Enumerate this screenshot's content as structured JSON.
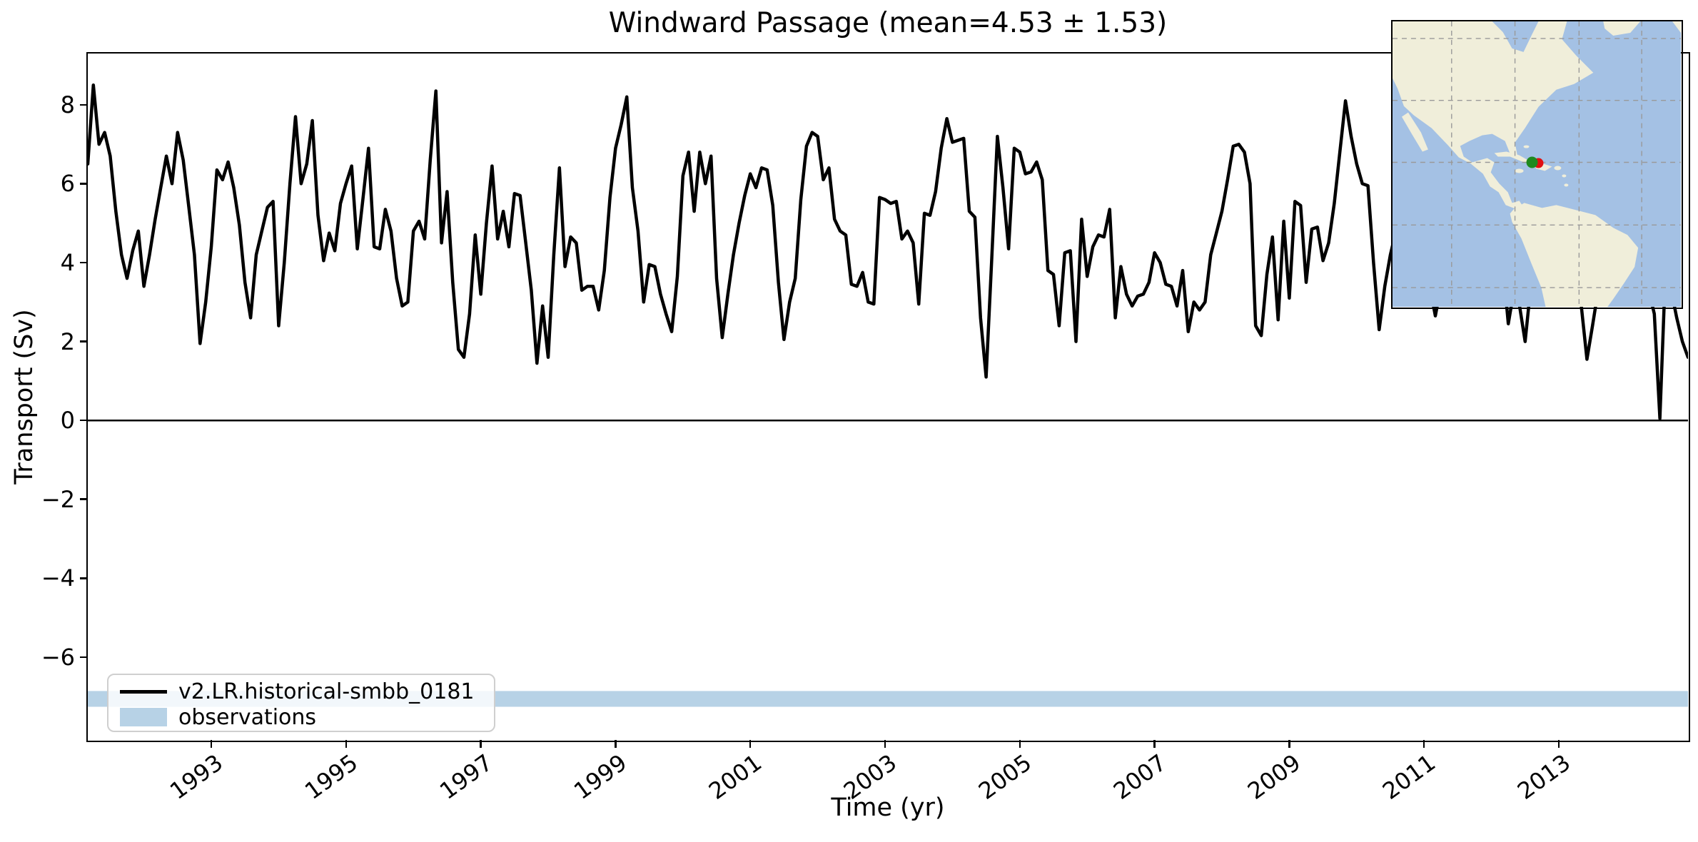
{
  "title": "Windward Passage (mean=4.53 ± 1.53)",
  "axes": {
    "xlabel": "Time (yr)",
    "ylabel": "Transport (Sv)",
    "xlim": [
      1991.167,
      2014.917
    ],
    "ylim": [
      -8.1,
      9.3
    ],
    "xticks": [
      1993,
      1995,
      1997,
      1999,
      2001,
      2003,
      2005,
      2007,
      2009,
      2011,
      2013
    ],
    "xtick_labels": [
      "1993",
      "1995",
      "1997",
      "1999",
      "2001",
      "2003",
      "2005",
      "2007",
      "2009",
      "2011",
      "2013"
    ],
    "yticks": [
      8,
      6,
      4,
      2,
      0,
      -2,
      -4,
      -6
    ],
    "ytick_labels": [
      "8",
      "6",
      "4",
      "2",
      "0",
      "−2",
      "−4",
      "−6"
    ]
  },
  "legend": {
    "items": [
      {
        "label": "v2.LR.historical-smbb_0181",
        "swatch": "line",
        "color": "#000000"
      },
      {
        "label": "observations",
        "swatch": "patch",
        "color": "#b7d2e6"
      }
    ]
  },
  "chart_data": {
    "type": "line",
    "title": "Windward Passage (mean=4.53 ± 1.53)",
    "xlabel": "Time (yr)",
    "ylabel": "Transport (Sv)",
    "xlim": [
      1991.167,
      2014.917
    ],
    "ylim": [
      -8.1,
      9.3
    ],
    "grid": false,
    "legend_position": "lower left",
    "mean": 4.53,
    "std": 1.53,
    "zero_line": 0,
    "observations_band": {
      "label": "observations",
      "y_min": -7.26,
      "y_max": -6.86,
      "color": "#b7d2e6"
    },
    "series": [
      {
        "name": "v2.LR.historical-smbb_0181",
        "color": "#000000",
        "line_width": 4.5,
        "start_time": 1991.1667,
        "step_years": 0.0833333,
        "values": [
          6.5,
          8.5,
          7.0,
          7.3,
          6.7,
          5.3,
          4.2,
          3.6,
          4.3,
          4.8,
          3.4,
          4.2,
          5.1,
          5.9,
          6.7,
          6.0,
          7.3,
          6.6,
          5.4,
          4.2,
          1.95,
          3.0,
          4.4,
          6.35,
          6.1,
          6.55,
          5.9,
          4.95,
          3.5,
          2.6,
          4.2,
          4.8,
          5.4,
          5.55,
          2.4,
          4.0,
          6.0,
          7.7,
          6.0,
          6.5,
          7.6,
          5.2,
          4.05,
          4.75,
          4.3,
          5.5,
          6.0,
          6.45,
          4.35,
          5.6,
          6.9,
          4.4,
          4.35,
          5.35,
          4.8,
          3.6,
          2.9,
          3.0,
          4.8,
          5.05,
          4.6,
          6.6,
          8.35,
          4.5,
          5.8,
          3.5,
          1.8,
          1.6,
          2.7,
          4.7,
          3.2,
          5.0,
          6.45,
          4.6,
          5.3,
          4.4,
          5.75,
          5.7,
          4.5,
          3.3,
          1.45,
          2.9,
          1.6,
          4.2,
          6.4,
          3.9,
          4.65,
          4.5,
          3.3,
          3.4,
          3.4,
          2.8,
          3.8,
          5.65,
          6.9,
          7.5,
          8.2,
          5.9,
          4.8,
          3.0,
          3.95,
          3.9,
          3.2,
          2.7,
          2.25,
          3.65,
          6.2,
          6.8,
          5.3,
          6.8,
          6.0,
          6.7,
          3.6,
          2.1,
          3.2,
          4.2,
          5.0,
          5.7,
          6.25,
          5.9,
          6.4,
          6.35,
          5.45,
          3.5,
          2.05,
          3.0,
          3.6,
          5.6,
          6.95,
          7.3,
          7.2,
          6.1,
          6.4,
          5.1,
          4.8,
          4.7,
          3.45,
          3.4,
          3.75,
          3.0,
          2.95,
          5.65,
          5.6,
          5.5,
          5.55,
          4.6,
          4.8,
          4.5,
          2.95,
          5.25,
          5.2,
          5.8,
          6.9,
          7.65,
          7.05,
          7.1,
          7.15,
          5.3,
          5.15,
          2.6,
          1.1,
          4.1,
          7.2,
          5.9,
          4.35,
          6.9,
          6.8,
          6.25,
          6.3,
          6.55,
          6.1,
          3.8,
          3.7,
          2.4,
          4.25,
          4.3,
          2.0,
          5.1,
          3.65,
          4.4,
          4.7,
          4.65,
          5.35,
          2.6,
          3.9,
          3.2,
          2.9,
          3.15,
          3.2,
          3.5,
          4.25,
          4.0,
          3.45,
          3.4,
          2.9,
          3.8,
          2.25,
          3.0,
          2.8,
          3.0,
          4.2,
          4.75,
          5.3,
          6.1,
          6.95,
          7.0,
          6.8,
          6.0,
          2.4,
          2.15,
          3.7,
          4.65,
          2.55,
          5.05,
          3.1,
          5.55,
          5.45,
          3.5,
          4.85,
          4.9,
          4.05,
          4.5,
          5.5,
          6.8,
          8.1,
          7.2,
          6.5,
          6.0,
          5.95,
          4.0,
          2.3,
          3.4,
          4.2,
          4.8,
          5.3,
          4.6,
          3.9,
          3.3,
          4.5,
          3.4,
          2.65,
          3.4,
          4.4,
          5.2,
          5.8,
          5.2,
          4.4,
          3.8,
          4.6,
          5.4,
          5.8,
          5.0,
          4.0,
          2.45,
          3.3,
          2.9,
          2.0,
          3.4,
          4.4,
          5.2,
          5.8,
          5.2,
          4.8,
          4.4,
          3.9,
          3.4,
          2.9,
          1.55,
          2.4,
          3.3,
          4.5,
          5.5,
          6.3,
          6.8,
          6.2,
          5.5,
          4.8,
          4.0,
          3.3,
          2.7,
          0.05,
          3.85,
          3.3,
          2.6,
          2.0,
          1.6
        ]
      }
    ]
  },
  "inset_map": {
    "description": "Windward Passage location map",
    "ocean_color": "#a4c1e4",
    "land_color": "#f0eeda",
    "grid_color": "#999999",
    "marker_green": "#1e8a1e",
    "marker_red": "#e01010"
  }
}
